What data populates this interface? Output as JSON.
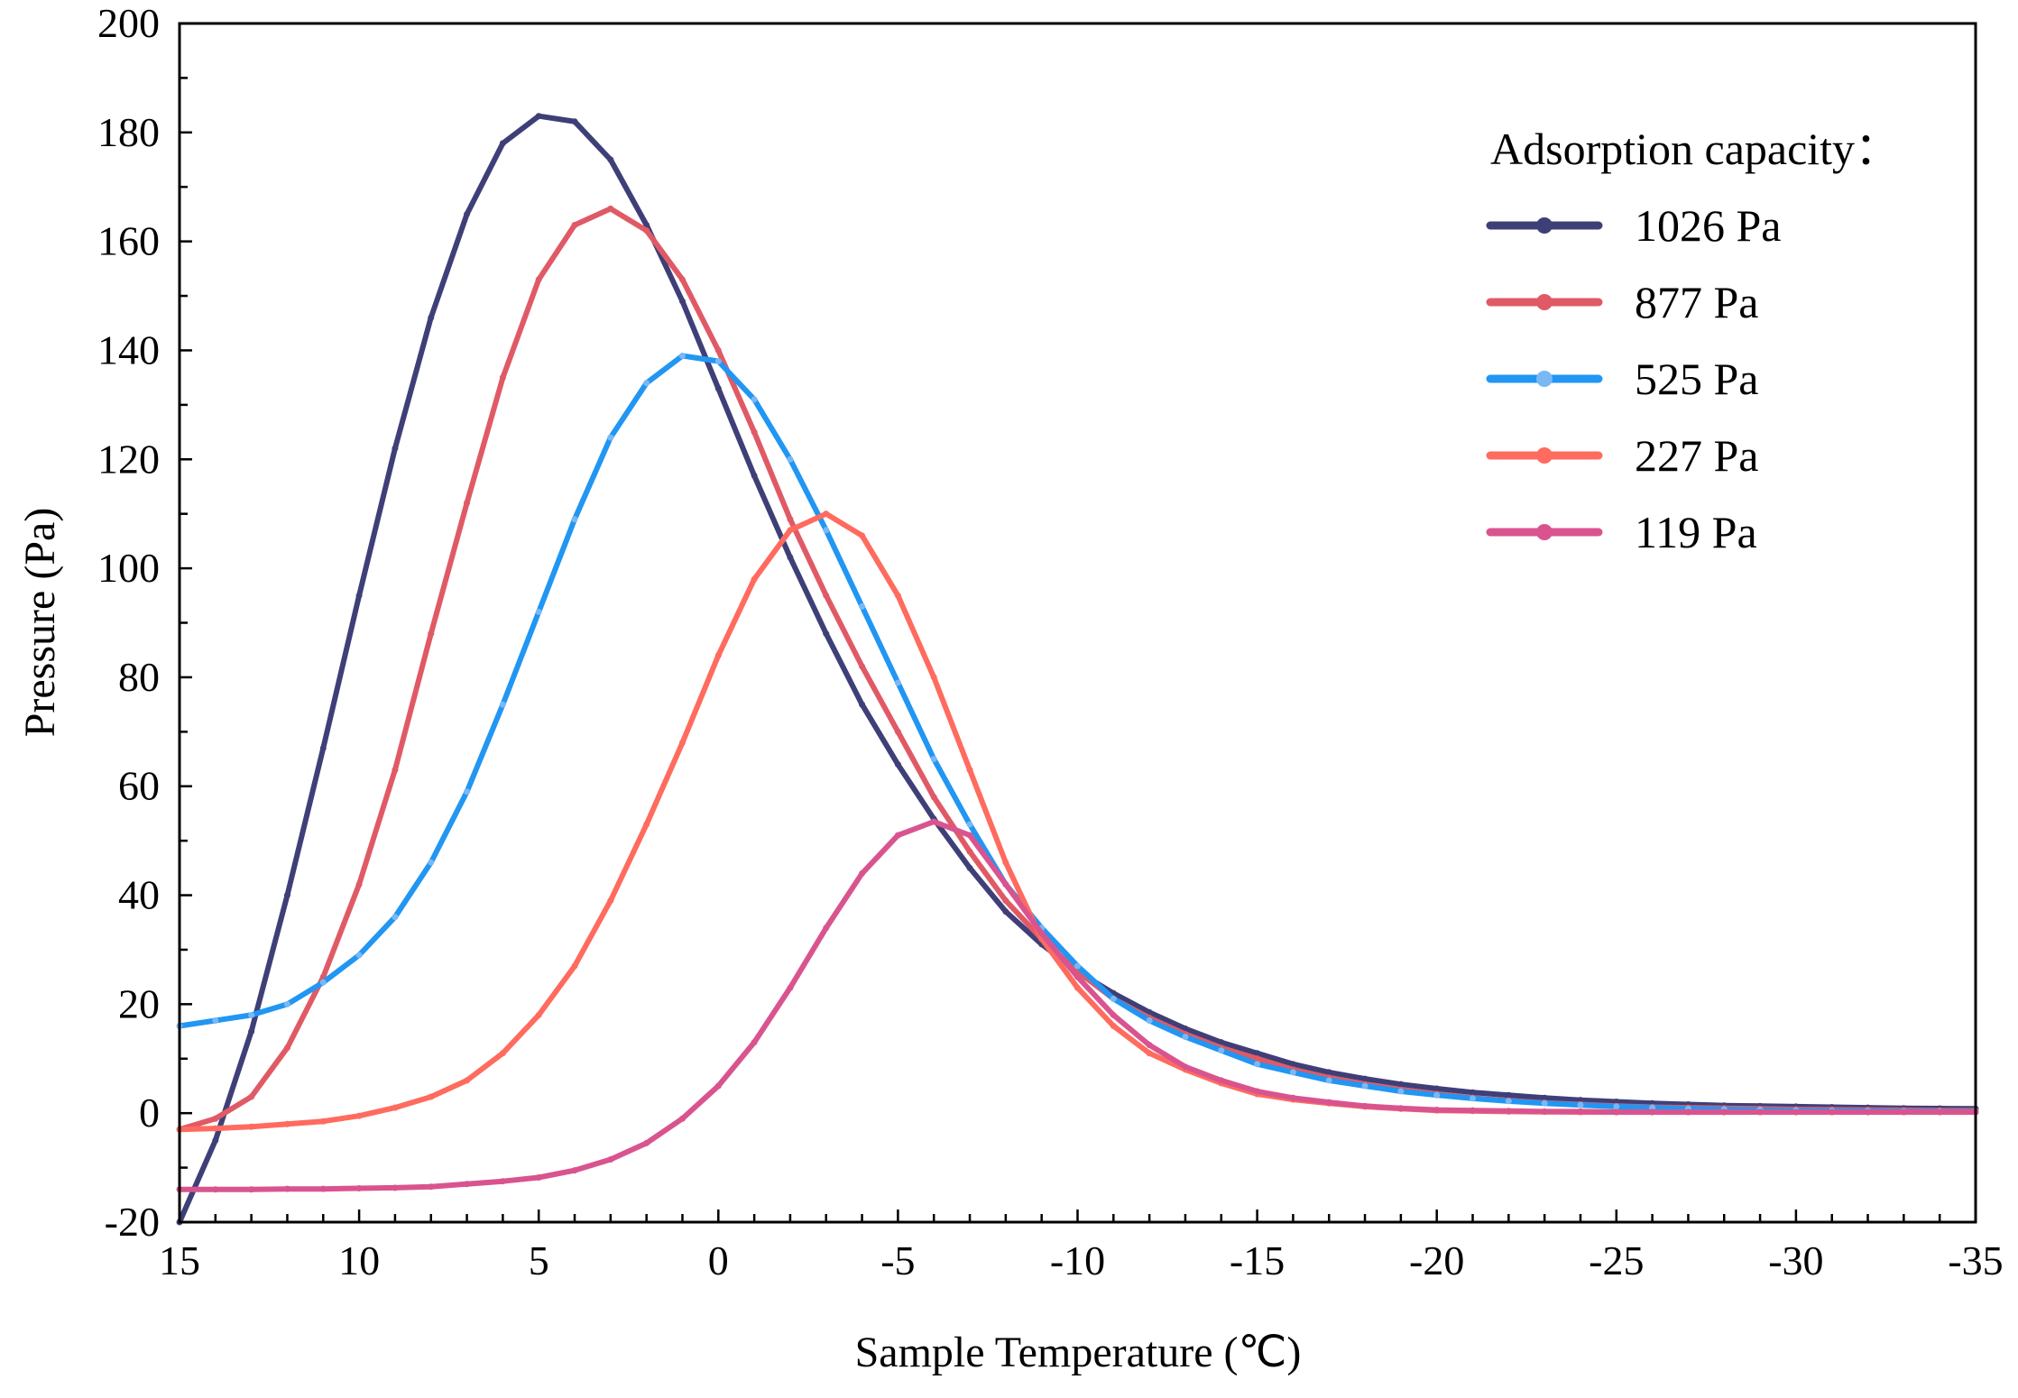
{
  "chart_data": {
    "type": "line",
    "title": "",
    "xlabel": "Sample Temperature (℃)",
    "ylabel": "Pressure (Pa)",
    "xlim": [
      15,
      -35
    ],
    "ylim": [
      -20,
      200
    ],
    "x_ticks": [
      15,
      10,
      5,
      0,
      -5,
      -10,
      -15,
      -20,
      -25,
      -30,
      -35
    ],
    "y_ticks": [
      -20,
      0,
      20,
      40,
      60,
      80,
      100,
      120,
      140,
      160,
      180,
      200
    ],
    "grid": false,
    "legend": {
      "title": "Adsorption capacity：",
      "placement": "top-right"
    },
    "x": [
      15,
      14,
      13,
      12,
      11,
      10,
      9,
      8,
      7,
      6,
      5,
      4,
      3,
      2,
      1,
      0,
      -1,
      -2,
      -3,
      -4,
      -5,
      -6,
      -7,
      -8,
      -9,
      -10,
      -11,
      -12,
      -13,
      -14,
      -15,
      -16,
      -17,
      -18,
      -19,
      -20,
      -21,
      -22,
      -23,
      -24,
      -25,
      -26,
      -27,
      -28,
      -29,
      -30,
      -31,
      -32,
      -33,
      -34,
      -35
    ],
    "series": [
      {
        "name": "1026 Pa",
        "color": "#3f3f78",
        "marker_color": "#3f3f78",
        "values": [
          -20,
          -5,
          15,
          40,
          67,
          95,
          122,
          146,
          165,
          178,
          183,
          182,
          175,
          163,
          149,
          133,
          117,
          102,
          88,
          75,
          64,
          54,
          45,
          37,
          31,
          26,
          22,
          18.5,
          15.5,
          13,
          11,
          9,
          7.5,
          6.3,
          5.3,
          4.5,
          3.8,
          3.3,
          2.8,
          2.4,
          2.1,
          1.8,
          1.6,
          1.4,
          1.3,
          1.2,
          1.1,
          1,
          0.9,
          0.85,
          0.8
        ]
      },
      {
        "name": "877 Pa",
        "color": "#e05a66",
        "marker_color": "#e05a66",
        "values": [
          -3,
          -1,
          3,
          12,
          25,
          42,
          63,
          88,
          112,
          135,
          153,
          163,
          166,
          162,
          153,
          140,
          125,
          109,
          95,
          82,
          70,
          58,
          48,
          39,
          32,
          26,
          21,
          17.5,
          14.5,
          12,
          10,
          8,
          6.5,
          5.3,
          4.3,
          3.5,
          2.8,
          2.3,
          1.9,
          1.6,
          1.3,
          1.1,
          1,
          0.9,
          0.8,
          0.7,
          0.65,
          0.6,
          0.55,
          0.5,
          0.5
        ]
      },
      {
        "name": "525 Pa",
        "color": "#2196f3",
        "marker_color": "#7ab8f5",
        "values": [
          16,
          17,
          18,
          20,
          24,
          29,
          36,
          46,
          59,
          75,
          92,
          109,
          124,
          134,
          139,
          138,
          131,
          120,
          107,
          93,
          79,
          65,
          53,
          42,
          34,
          27,
          21,
          17,
          14,
          11.5,
          9,
          7.5,
          6,
          5,
          4,
          3.3,
          2.7,
          2.2,
          1.8,
          1.5,
          1.2,
          1,
          0.8,
          0.7,
          0.6,
          0.5,
          0.45,
          0.4,
          0.35,
          0.3,
          0.3
        ]
      },
      {
        "name": "227 Pa",
        "color": "#ff6b5e",
        "marker_color": "#ff6b5e",
        "values": [
          -3,
          -2.8,
          -2.5,
          -2,
          -1.5,
          -0.5,
          1,
          3,
          6,
          11,
          18,
          27,
          39,
          53,
          68,
          84,
          98,
          107,
          110,
          106,
          95,
          80,
          63,
          46,
          32,
          23,
          16,
          11,
          8,
          5.5,
          3.5,
          2.5,
          1.8,
          1.2,
          0.8,
          0.5,
          0.4,
          0.3,
          0.25,
          0.2,
          0.2,
          0.2,
          0.2,
          0.2,
          0.2,
          0.2,
          0.2,
          0.2,
          0.2,
          0.2,
          0.2
        ]
      },
      {
        "name": "119 Pa",
        "color": "#d9548f",
        "marker_color": "#d9548f",
        "values": [
          -14,
          -14,
          -14,
          -13.9,
          -13.9,
          -13.8,
          -13.7,
          -13.5,
          -13,
          -12.5,
          -11.8,
          -10.5,
          -8.5,
          -5.5,
          -1,
          5,
          13,
          23,
          34,
          44,
          51,
          53.5,
          51,
          42,
          33,
          25,
          18,
          12.5,
          8.5,
          6,
          4,
          2.8,
          2,
          1.3,
          0.9,
          0.6,
          0.5,
          0.4,
          0.3,
          0.3,
          0.2,
          0.2,
          0.2,
          0.2,
          0.2,
          0.2,
          0.2,
          0.2,
          0.2,
          0.2,
          0.2
        ]
      }
    ]
  }
}
